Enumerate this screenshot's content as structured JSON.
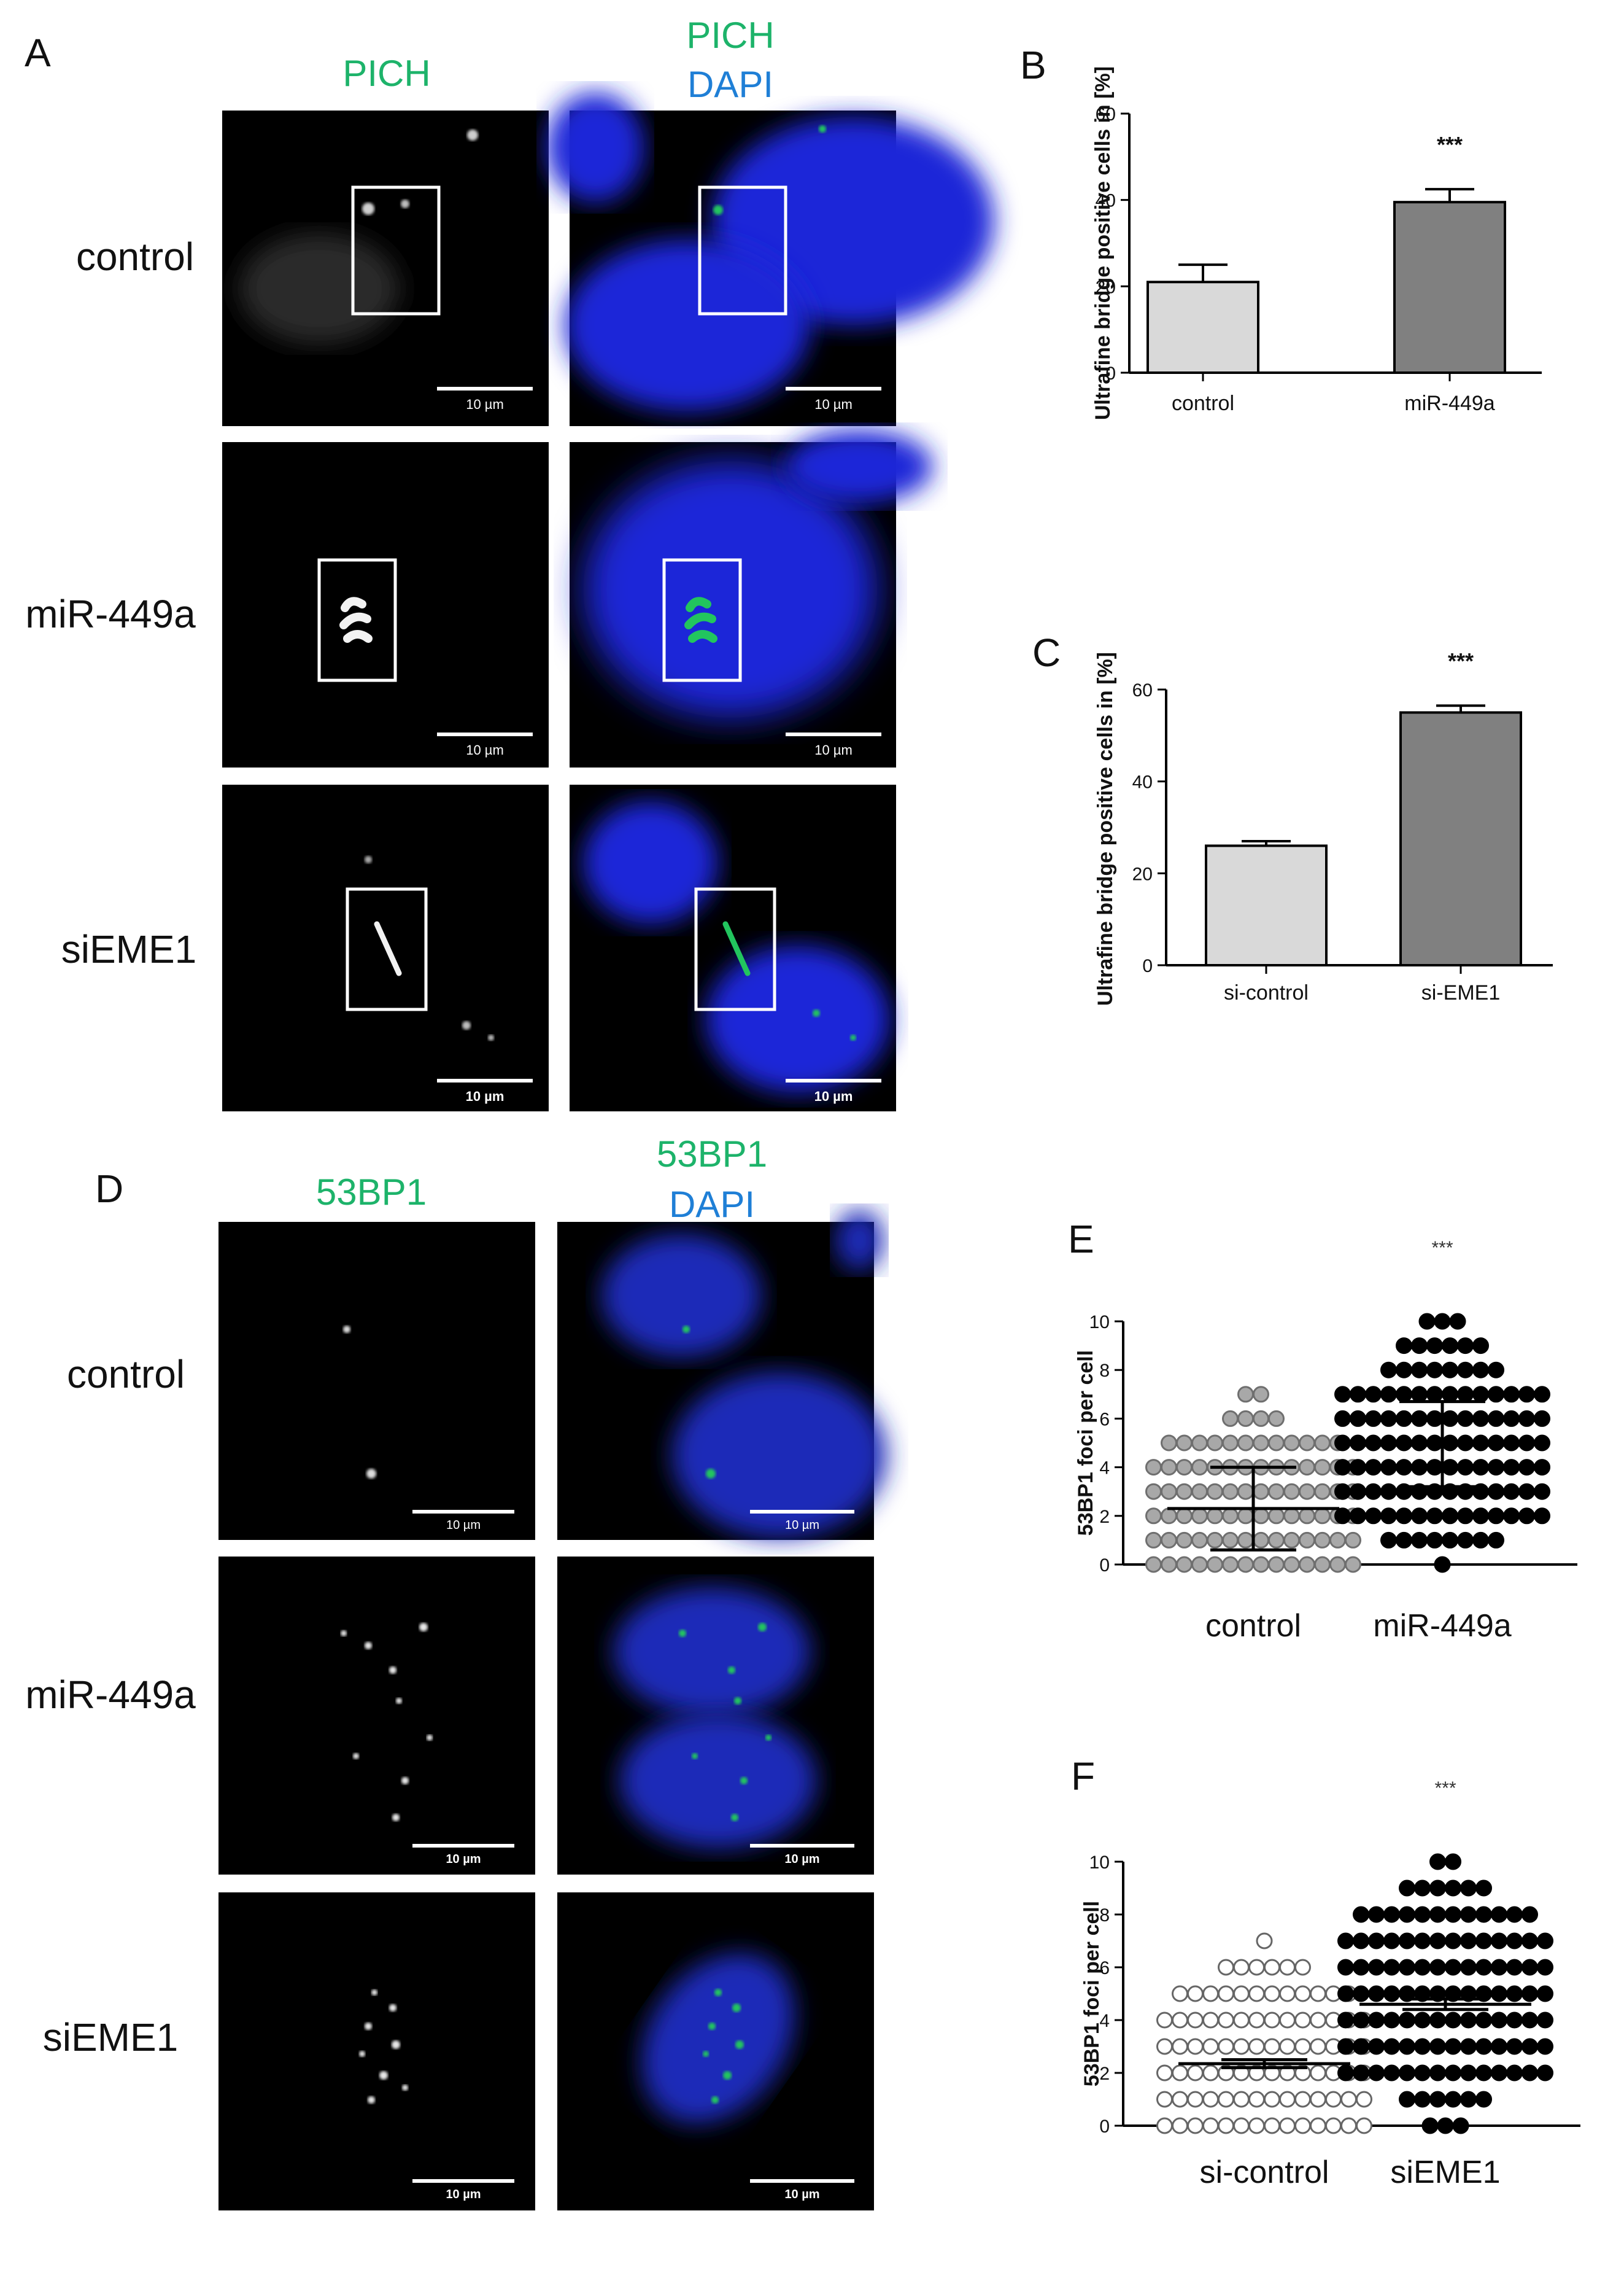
{
  "panels": {
    "A": {
      "letter": "A",
      "col1_title": "PICH",
      "col2_title_line1": "PICH",
      "col2_title_line2": "DAPI",
      "rows": [
        "control",
        "miR-449a",
        "siEME1"
      ],
      "scale_labels": [
        "10 µm",
        "10 µm",
        "10 µm",
        "10 µm",
        "10 µm",
        "10 µm"
      ]
    },
    "D": {
      "letter": "D",
      "col1_title": "53BP1",
      "col2_title_line1": "53BP1",
      "col2_title_line2": "DAPI",
      "rows": [
        "control",
        "miR-449a",
        "siEME1"
      ],
      "scale_labels": [
        "10 µm",
        "10 µm",
        "10 µm",
        "10 µm",
        "10 µm",
        "10 µm"
      ]
    },
    "B": {
      "letter": "B"
    },
    "C": {
      "letter": "C"
    },
    "E": {
      "letter": "E"
    },
    "F": {
      "letter": "F"
    }
  },
  "colors": {
    "green_label": "#1db36a",
    "blue_label": "#1f7fd6",
    "bar_control": "#d9d9d9",
    "bar_treated": "#808080",
    "dot_gray": "#a8a8a8",
    "dot_black": "#000000",
    "dot_hollow": "#ffffff"
  },
  "chart_data": [
    {
      "id": "B",
      "type": "bar",
      "categories": [
        "control",
        "miR-449a"
      ],
      "values": [
        21,
        39.5
      ],
      "errors": [
        4,
        3
      ],
      "ylabel": "Ultrafine bridge positive cells in [%]",
      "ylim": [
        0,
        60
      ],
      "yticks": [
        0,
        20,
        40,
        60
      ],
      "annotation": "***"
    },
    {
      "id": "C",
      "type": "bar",
      "categories": [
        "si-control",
        "si-EME1"
      ],
      "values": [
        26,
        55
      ],
      "errors": [
        1,
        1.5
      ],
      "ylabel": "Ultrafine bridge positive cells in [%]",
      "ylim": [
        0,
        60
      ],
      "yticks": [
        0,
        20,
        40,
        60
      ],
      "annotation": "***"
    },
    {
      "id": "E",
      "type": "scatter",
      "categories": [
        "control",
        "miR-449a"
      ],
      "ylabel": "53BP1 foci per cell",
      "ylim": [
        0,
        10
      ],
      "yticks": [
        0,
        2,
        4,
        6,
        8,
        10
      ],
      "annotation": "***",
      "series": [
        {
          "category": "control",
          "style": "gray",
          "mean": 2.3,
          "sd_low": 0.6,
          "sd_high": 4.0,
          "counts": {
            "0": 14,
            "1": 14,
            "2": 14,
            "3": 14,
            "4": 14,
            "5": 12,
            "6": 4,
            "7": 2
          }
        },
        {
          "category": "miR-449a",
          "style": "black",
          "mean": 4.9,
          "sd_low": 3.2,
          "sd_high": 6.7,
          "counts": {
            "0": 1,
            "1": 8,
            "2": 14,
            "3": 14,
            "4": 14,
            "5": 14,
            "6": 14,
            "7": 14,
            "8": 8,
            "9": 6,
            "10": 3
          }
        }
      ]
    },
    {
      "id": "F",
      "type": "scatter",
      "categories": [
        "si-control",
        "siEME1"
      ],
      "ylabel": "53BP1 foci per cell",
      "ylim": [
        0,
        10
      ],
      "yticks": [
        0,
        2,
        4,
        6,
        8,
        10
      ],
      "annotation": "***",
      "series": [
        {
          "category": "si-control",
          "style": "hollow",
          "mean": 2.35,
          "sd_low": 2.2,
          "sd_high": 2.5,
          "counts": {
            "0": 14,
            "1": 14,
            "2": 14,
            "3": 14,
            "4": 14,
            "5": 12,
            "6": 6,
            "7": 1
          }
        },
        {
          "category": "siEME1",
          "style": "black",
          "mean": 4.6,
          "sd_low": 4.4,
          "sd_high": 4.8,
          "counts": {
            "0": 3,
            "1": 6,
            "2": 14,
            "3": 14,
            "4": 14,
            "5": 14,
            "6": 14,
            "7": 14,
            "8": 12,
            "9": 6,
            "10": 2
          }
        }
      ]
    }
  ]
}
